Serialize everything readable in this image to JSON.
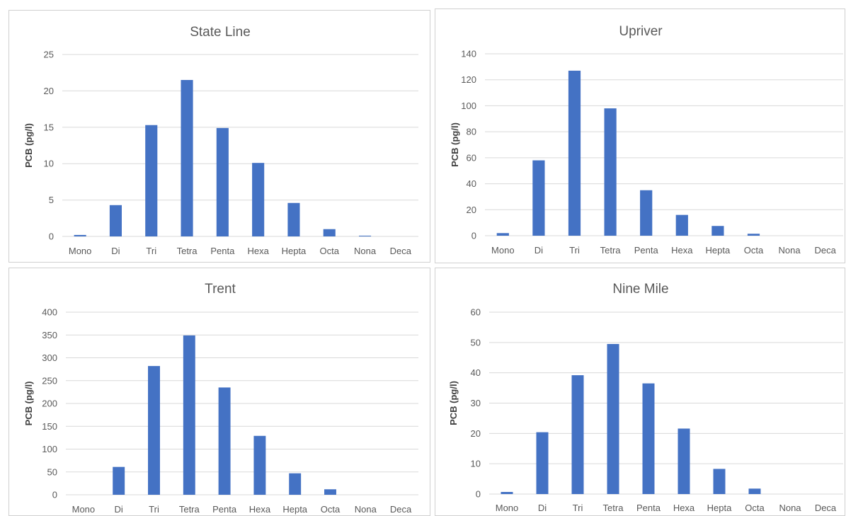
{
  "colors": {
    "bar": "#4472c4",
    "grid": "#d9d9d9",
    "text": "#595959",
    "border": "#d0d0d0"
  },
  "chart_data": [
    {
      "type": "bar",
      "title": "State Line",
      "ylabel": "PCB  (pg/l)",
      "xlabel": "",
      "categories": [
        "Mono",
        "Di",
        "Tri",
        "Tetra",
        "Penta",
        "Hexa",
        "Hepta",
        "Octa",
        "Nona",
        "Deca"
      ],
      "values": [
        0.2,
        4.3,
        15.3,
        21.5,
        14.9,
        10.1,
        4.6,
        1.0,
        0.1,
        0
      ],
      "ylim": [
        0,
        25
      ],
      "yticks": [
        0,
        5,
        10,
        15,
        20,
        25
      ],
      "grid": true,
      "legend": "none"
    },
    {
      "type": "bar",
      "title": "Upriver",
      "ylabel": "PCB  (pg/l)",
      "xlabel": "",
      "categories": [
        "Mono",
        "Di",
        "Tri",
        "Tetra",
        "Penta",
        "Hexa",
        "Hepta",
        "Octa",
        "Nona",
        "Deca"
      ],
      "values": [
        2,
        58,
        127,
        98,
        35,
        16,
        7.5,
        1.5,
        0,
        0
      ],
      "ylim": [
        0,
        140
      ],
      "yticks": [
        0,
        20,
        40,
        60,
        80,
        100,
        120,
        140
      ],
      "grid": true,
      "legend": "none"
    },
    {
      "type": "bar",
      "title": "Trent",
      "ylabel": "PCB  (pg/l)",
      "xlabel": "",
      "categories": [
        "Mono",
        "Di",
        "Tri",
        "Tetra",
        "Penta",
        "Hexa",
        "Hepta",
        "Octa",
        "Nona",
        "Deca"
      ],
      "values": [
        0,
        61,
        282,
        349,
        235,
        129,
        47,
        12,
        0,
        0
      ],
      "ylim": [
        0,
        400
      ],
      "yticks": [
        0,
        50,
        100,
        150,
        200,
        250,
        300,
        350,
        400
      ],
      "grid": true,
      "legend": "none"
    },
    {
      "type": "bar",
      "title": "Nine Mile",
      "ylabel": "PCB  (pg/l)",
      "xlabel": "",
      "categories": [
        "Mono",
        "Di",
        "Tri",
        "Tetra",
        "Penta",
        "Hexa",
        "Hepta",
        "Octa",
        "Nona",
        "Deca"
      ],
      "values": [
        0.7,
        20.4,
        39.2,
        49.5,
        36.5,
        21.6,
        8.3,
        1.8,
        0,
        0
      ],
      "ylim": [
        0,
        60
      ],
      "yticks": [
        0,
        10,
        20,
        30,
        40,
        50,
        60
      ],
      "grid": true,
      "legend": "none"
    }
  ]
}
